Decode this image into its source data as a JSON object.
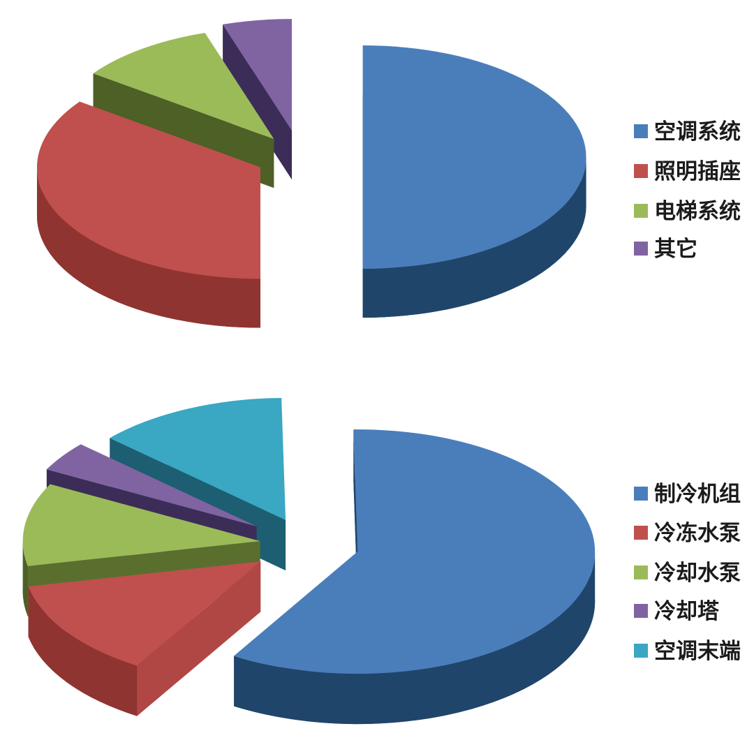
{
  "page": {
    "background": "#ffffff",
    "legend_text_color": "#1b1b1b"
  },
  "chart_data": [
    {
      "type": "pie",
      "style": "3d-exploded-pie",
      "title": "",
      "legend_position": "right",
      "labels": [
        "空调系统",
        "照明插座",
        "电梯系统",
        "其它"
      ],
      "values": [
        50,
        35,
        10,
        5
      ],
      "colors": [
        "#4a7ebb",
        "#c0504d",
        "#9bbb59",
        "#8064a2"
      ],
      "side_colors": [
        "#20456a",
        "#8f3431",
        "#4d6026",
        "#3b2d58"
      ]
    },
    {
      "type": "pie",
      "style": "3d-exploded-pie",
      "title": "",
      "legend_position": "right",
      "labels": [
        "制冷机组",
        "冷冻水泵",
        "冷却水泵",
        "冷却塔",
        "空调末端"
      ],
      "values": [
        59,
        13,
        11,
        4,
        13
      ],
      "colors": [
        "#4a7ebb",
        "#c0504d",
        "#9bbb59",
        "#8064a2",
        "#3aa7c3"
      ],
      "side_colors": [
        "#20456a",
        "#8f3431",
        "#4d6026",
        "#3b2d58",
        "#1d5e72"
      ]
    }
  ]
}
